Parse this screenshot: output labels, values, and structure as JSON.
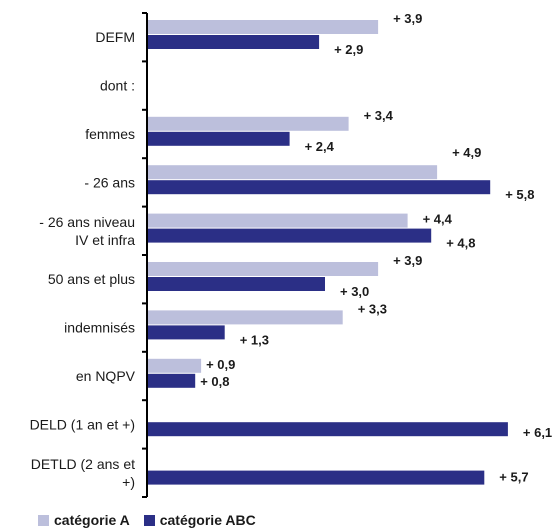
{
  "chart_data": {
    "type": "bar",
    "orientation": "horizontal",
    "categories": [
      [
        "DEFM"
      ],
      [
        "dont :"
      ],
      [
        "femmes"
      ],
      [
        "- 26 ans"
      ],
      [
        "- 26 ans niveau",
        "IV et infra"
      ],
      [
        "50 ans et plus"
      ],
      [
        "indemnisés"
      ],
      [
        "en NQPV"
      ],
      [
        "DELD (1 an et +)"
      ],
      [
        "DETLD (2 ans et",
        "+)"
      ]
    ],
    "series": [
      {
        "name": "catégorie A",
        "color": "#bcbfdc",
        "values": [
          3.9,
          null,
          3.4,
          4.9,
          4.4,
          3.9,
          3.3,
          0.9,
          null,
          null
        ],
        "labels": [
          "+ 3,9",
          "",
          "+ 3,4",
          "+ 4,9",
          "+ 4,4",
          "+ 3,9",
          "+ 3,3",
          "+ 0,9",
          "",
          ""
        ]
      },
      {
        "name": "catégorie ABC",
        "color": "#2b2f86",
        "values": [
          2.9,
          null,
          2.4,
          5.8,
          4.8,
          3.0,
          1.3,
          0.8,
          6.1,
          5.7
        ],
        "labels": [
          "+ 2,9",
          "",
          "+ 2,4",
          "+ 5,8",
          "+ 4,8",
          "+ 3,0",
          "+ 1,3",
          "+ 0,8",
          "+ 6,1",
          "+ 5,7"
        ]
      }
    ],
    "xlim": [
      0,
      6.1
    ],
    "grid": false,
    "legend_position": "bottom-left"
  }
}
